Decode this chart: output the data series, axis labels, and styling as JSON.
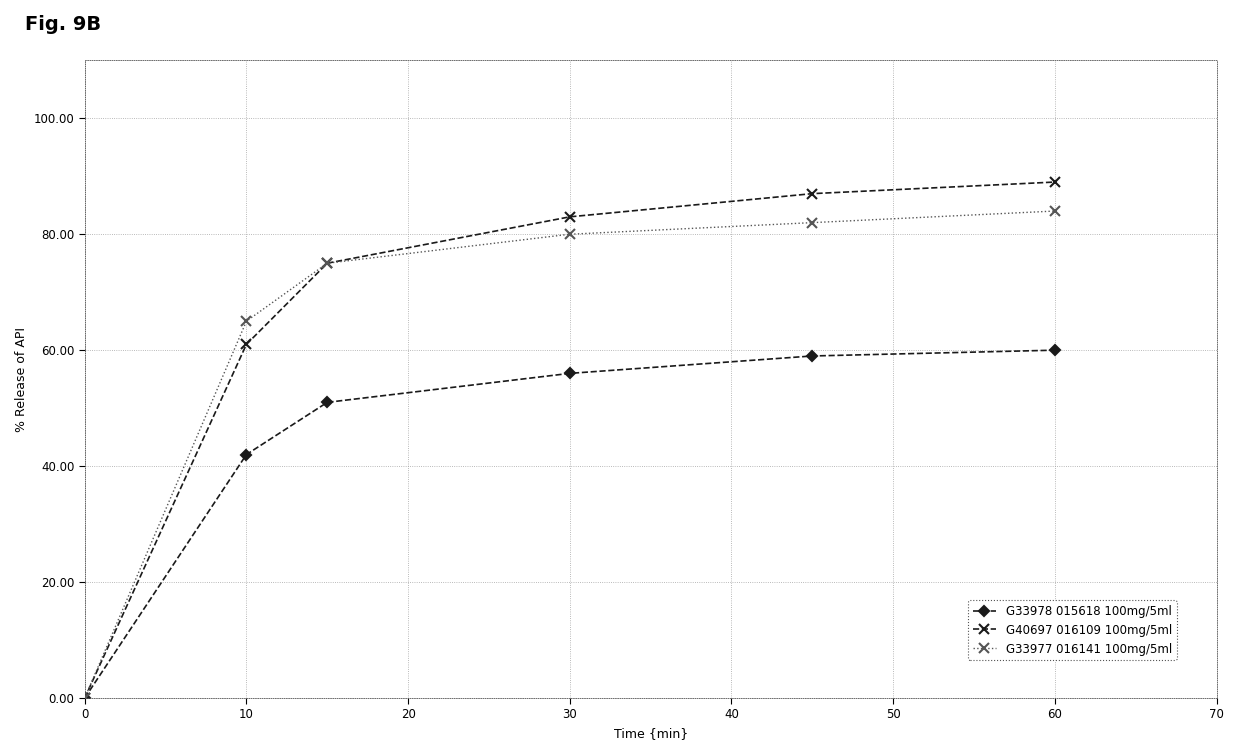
{
  "title": "Fig. 9B",
  "xlabel": "Time {min}",
  "ylabel": "% Release of API",
  "xlim": [
    0,
    70
  ],
  "ylim": [
    0,
    110
  ],
  "yticks": [
    0.0,
    20.0,
    40.0,
    60.0,
    80.0,
    100.0
  ],
  "xticks": [
    0,
    10,
    20,
    30,
    40,
    50,
    60,
    70
  ],
  "series": [
    {
      "label": "G33978 015618 100mg/5ml",
      "x": [
        0,
        10,
        15,
        30,
        45,
        60
      ],
      "y": [
        0,
        42,
        51,
        56,
        59,
        60
      ],
      "color": "#1a1a1a",
      "linestyle": "--",
      "marker": "D",
      "markersize": 5,
      "linewidth": 1.2,
      "dashes": [
        4,
        2
      ]
    },
    {
      "label": "G40697 016109 100mg/5ml",
      "x": [
        0,
        10,
        15,
        30,
        45,
        60
      ],
      "y": [
        0,
        61,
        75,
        83,
        87,
        89
      ],
      "color": "#1a1a1a",
      "linestyle": "--",
      "marker": "x",
      "markersize": 7,
      "linewidth": 1.2,
      "dashes": [
        4,
        2
      ]
    },
    {
      "label": "G33977 016141 100mg/5ml",
      "x": [
        0,
        10,
        15,
        30,
        45,
        60
      ],
      "y": [
        0,
        65,
        75,
        80,
        82,
        84
      ],
      "color": "#555555",
      "linestyle": ":",
      "marker": "x",
      "markersize": 7,
      "linewidth": 1.0,
      "dashes": [
        1,
        2
      ]
    }
  ],
  "background_color": "#ffffff",
  "grid_color": "#999999",
  "legend_fontsize": 8.5,
  "fig_title_fontsize": 14,
  "axis_label_fontsize": 9,
  "tick_fontsize": 8.5
}
